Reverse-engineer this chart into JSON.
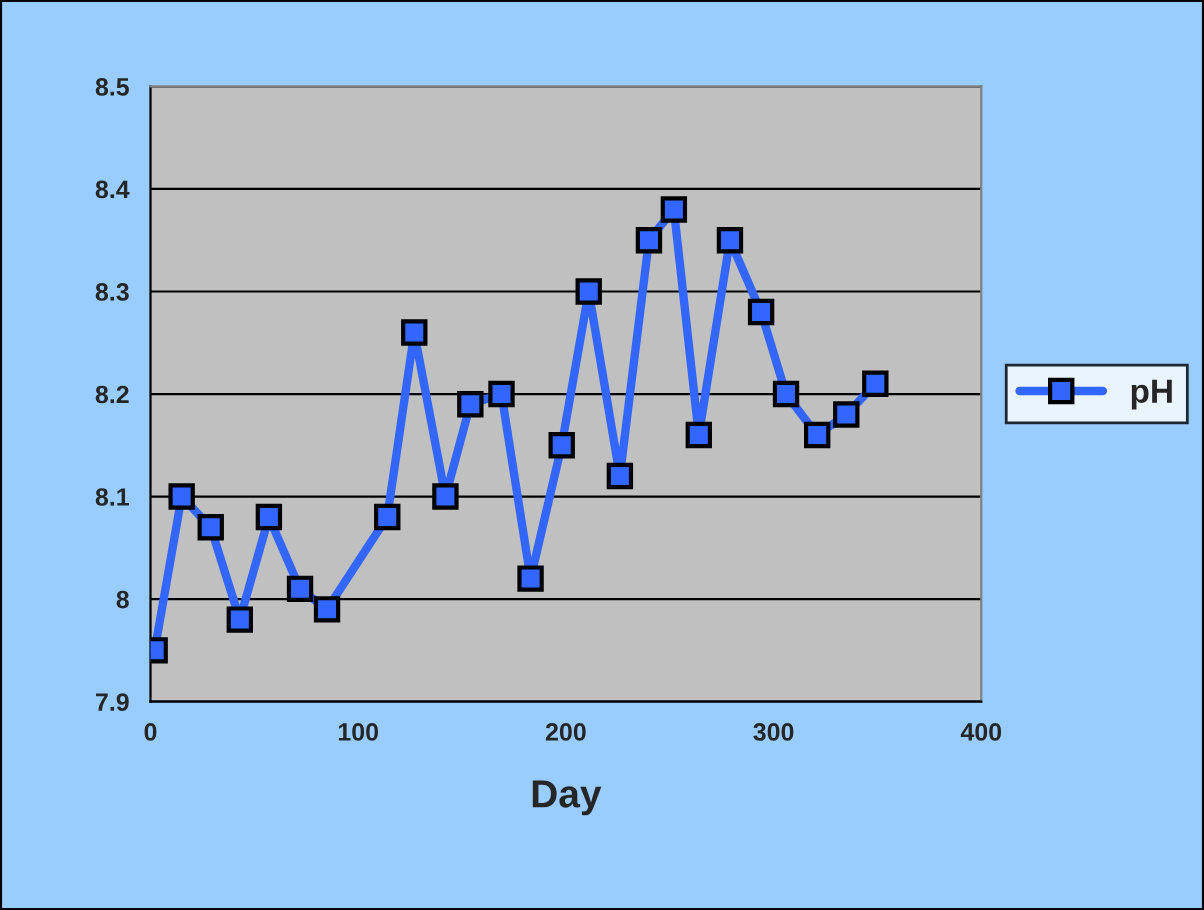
{
  "chart_data": {
    "type": "line",
    "xlabel": "Day",
    "x": [
      2,
      15,
      29,
      43,
      57,
      72,
      85,
      114,
      127,
      142,
      154,
      169,
      183,
      198,
      211,
      226,
      240,
      252,
      264,
      279,
      294,
      306,
      321,
      335,
      349
    ],
    "series": [
      {
        "name": "pH",
        "color": "#3366ff",
        "values": [
          7.95,
          8.1,
          8.07,
          7.98,
          8.08,
          8.01,
          7.99,
          8.08,
          8.26,
          8.1,
          8.19,
          8.2,
          8.02,
          8.15,
          8.3,
          8.12,
          8.35,
          8.38,
          8.16,
          8.35,
          8.28,
          8.2,
          8.16,
          8.18,
          8.21
        ]
      }
    ],
    "xlim": [
      0,
      400
    ],
    "xticks": [
      0,
      100,
      200,
      300,
      400
    ],
    "ylim": [
      7.9,
      8.5
    ],
    "yticks": [
      {
        "value": 7.9,
        "label": "7.9"
      },
      {
        "value": 8.0,
        "label": "8"
      },
      {
        "value": 8.1,
        "label": "8.1"
      },
      {
        "value": 8.2,
        "label": "8.2"
      },
      {
        "value": 8.3,
        "label": "8.3"
      },
      {
        "value": 8.4,
        "label": "8.4"
      },
      {
        "value": 8.5,
        "label": "8.5"
      }
    ],
    "grid": "y",
    "legend": "right",
    "marker": "square",
    "line_style": "solid"
  }
}
